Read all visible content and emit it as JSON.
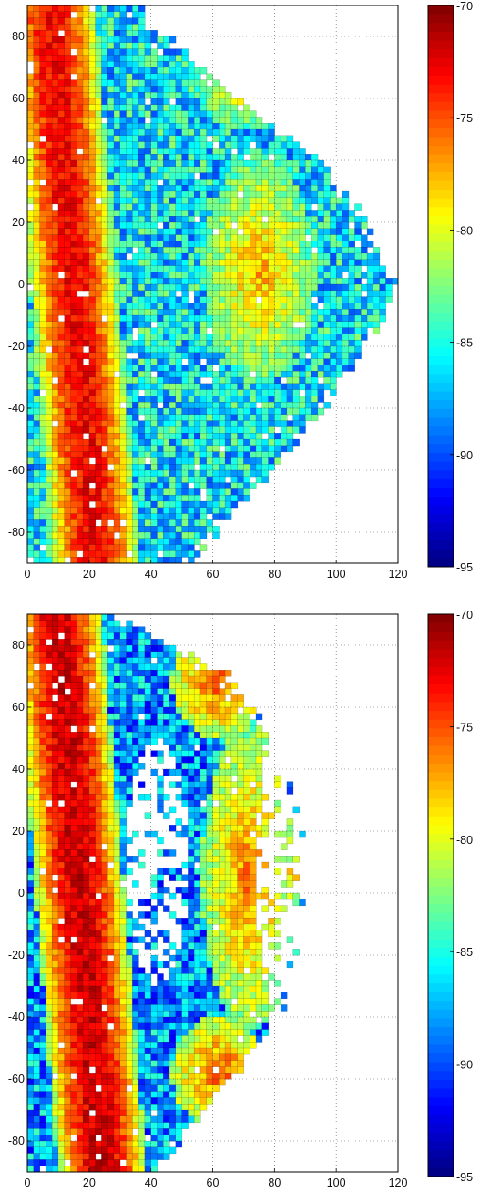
{
  "chart_data": [
    {
      "type": "heatmap",
      "title": "",
      "xlabel": "",
      "ylabel": "",
      "xlim": [
        0,
        120
      ],
      "ylim": [
        -90,
        90
      ],
      "xticks": [
        0,
        20,
        40,
        60,
        80,
        100,
        120
      ],
      "yticks": [
        80,
        60,
        40,
        20,
        0,
        -20,
        -40,
        -60,
        -80
      ],
      "grid": true,
      "colorbar": {
        "min": -95,
        "max": -70,
        "ticks": [
          -70,
          -75,
          -80,
          -85,
          -90,
          -95
        ],
        "colormap": "jet"
      },
      "values_description_not_shown": false,
      "features": {
        "main_band": {
          "x_center_at_y0": 15,
          "x_slope_per_unit_y": -0.08,
          "half_width": 9,
          "peak_value": -73
        },
        "secondary_hotspots": [
          {
            "x": 75,
            "y": 5,
            "rx": 14,
            "ry": 28,
            "value": -77
          },
          {
            "x": 70,
            "y": 65,
            "rx": 12,
            "ry": 12,
            "value": -78
          }
        ],
        "coverage_right_edge": [
          [
            90,
            35
          ],
          [
            70,
            55
          ],
          [
            40,
            95
          ],
          [
            20,
            108
          ],
          [
            0,
            120
          ],
          [
            -20,
            110
          ],
          [
            -40,
            95
          ],
          [
            -60,
            80
          ],
          [
            -80,
            60
          ],
          [
            -90,
            52
          ]
        ],
        "background_value": -86
      }
    },
    {
      "type": "heatmap",
      "title": "",
      "xlabel": "",
      "ylabel": "",
      "xlim": [
        0,
        120
      ],
      "ylim": [
        -90,
        90
      ],
      "xticks": [
        0,
        20,
        40,
        60,
        80,
        100,
        120
      ],
      "yticks": [
        80,
        60,
        40,
        20,
        0,
        -20,
        -40,
        -60,
        -80
      ],
      "grid": true,
      "colorbar": {
        "min": -95,
        "max": -70,
        "ticks": [
          -70,
          -75,
          -80,
          -85,
          -90,
          -95
        ],
        "colormap": "jet"
      },
      "features": {
        "main_band": {
          "x_center_at_y0": 17,
          "x_slope_per_unit_y": -0.08,
          "half_width": 9,
          "peak_value": -72
        },
        "secondary_hotspots": [
          {
            "x": 72,
            "y": 5,
            "rx": 12,
            "ry": 38,
            "value": -76
          },
          {
            "x": 62,
            "y": 68,
            "rx": 12,
            "ry": 14,
            "value": -75
          },
          {
            "x": 62,
            "y": -58,
            "rx": 12,
            "ry": 14,
            "value": -75
          },
          {
            "x": 90,
            "y": 5,
            "rx": 5,
            "ry": 5,
            "value": -74
          }
        ],
        "white_gaps": [
          {
            "x": 42,
            "y": 10,
            "rx": 10,
            "ry": 40
          },
          {
            "x": 88,
            "y": 10,
            "rx": 14,
            "ry": 60
          }
        ],
        "coverage_right_edge": [
          [
            90,
            28
          ],
          [
            70,
            65
          ],
          [
            40,
            85
          ],
          [
            20,
            88
          ],
          [
            0,
            88
          ],
          [
            -20,
            85
          ],
          [
            -40,
            80
          ],
          [
            -60,
            65
          ],
          [
            -80,
            48
          ],
          [
            -90,
            42
          ]
        ],
        "background_value": -88
      }
    }
  ]
}
